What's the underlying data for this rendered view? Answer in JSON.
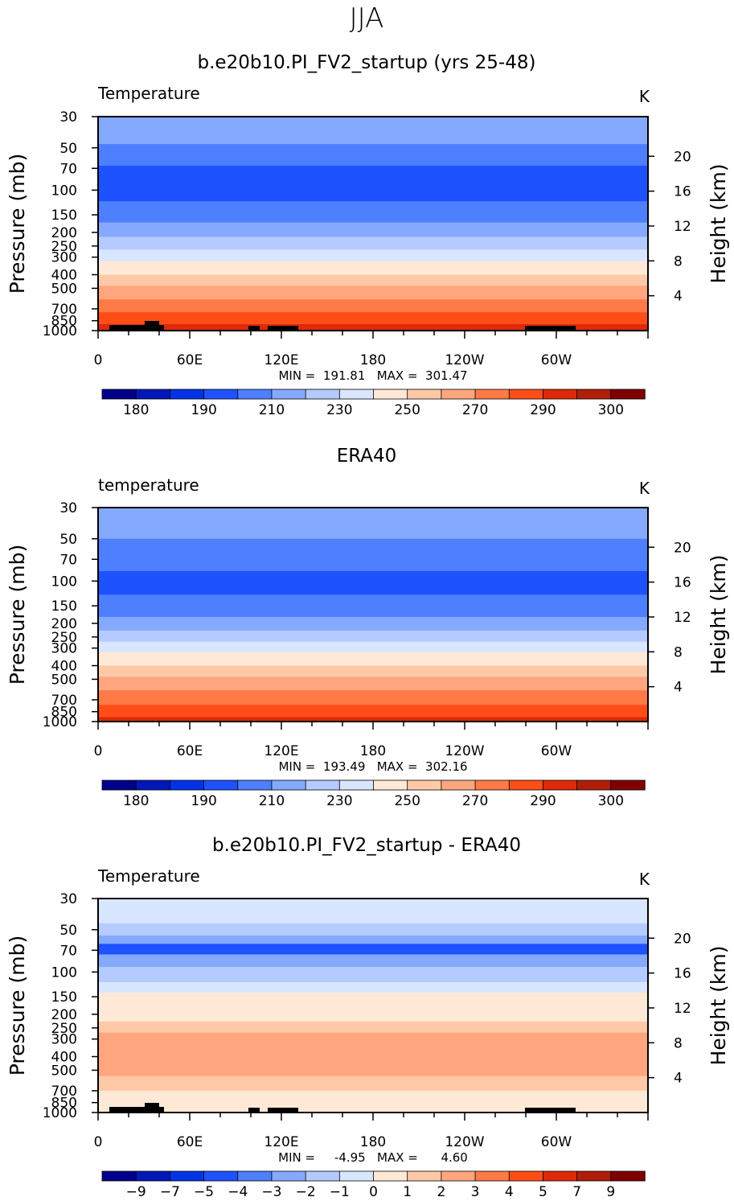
{
  "page_title": "JJA",
  "chart_data": [
    {
      "type": "heatmap",
      "title": "b.e20b10.PI_FV2_startup (yrs 25-48)",
      "left_label": "Temperature",
      "units": "K",
      "ylabel": "Pressure (mb)",
      "y2label": "Height (km)",
      "xticks": [
        "0",
        "60E",
        "120E",
        "180",
        "120W",
        "60W"
      ],
      "yticks": [
        "30",
        "50",
        "70",
        "100",
        "150",
        "200",
        "250",
        "300",
        "400",
        "500",
        "700",
        "850",
        "1000"
      ],
      "y2ticks": [
        "20",
        "16",
        "12",
        "8",
        "4"
      ],
      "min_max_text": "MIN =  191.81   MAX =  301.47",
      "colorbar_labels": [
        "180",
        "190",
        "210",
        "230",
        "250",
        "270",
        "290",
        "300"
      ],
      "bands": [
        {
          "p_top": 30,
          "p_bot": 47,
          "color": "#85a9ff"
        },
        {
          "p_top": 47,
          "p_bot": 67,
          "color": "#4d7fff"
        },
        {
          "p_top": 67,
          "p_bot": 120,
          "color": "#1e52ff"
        },
        {
          "p_top": 120,
          "p_bot": 170,
          "color": "#4d7fff"
        },
        {
          "p_top": 170,
          "p_bot": 215,
          "color": "#85a9ff"
        },
        {
          "p_top": 215,
          "p_bot": 265,
          "color": "#b5cbff"
        },
        {
          "p_top": 265,
          "p_bot": 320,
          "color": "#d9e6ff"
        },
        {
          "p_top": 320,
          "p_bot": 400,
          "color": "#ffe9d6"
        },
        {
          "p_top": 400,
          "p_bot": 480,
          "color": "#ffc9a8"
        },
        {
          "p_top": 480,
          "p_bot": 600,
          "color": "#ffa67e"
        },
        {
          "p_top": 600,
          "p_bot": 740,
          "color": "#ff7a46"
        },
        {
          "p_top": 740,
          "p_bot": 900,
          "color": "#ff4d18"
        },
        {
          "p_top": 900,
          "p_bot": 1000,
          "color": "#dd2a0a"
        }
      ]
    },
    {
      "type": "heatmap",
      "title": "ERA40",
      "left_label": "temperature",
      "units": "K",
      "ylabel": "Pressure (mb)",
      "y2label": "Height (km)",
      "xticks": [
        "0",
        "60E",
        "120E",
        "180",
        "120W",
        "60W"
      ],
      "yticks": [
        "30",
        "50",
        "70",
        "100",
        "150",
        "200",
        "250",
        "300",
        "400",
        "500",
        "700",
        "850",
        "1000"
      ],
      "y2ticks": [
        "20",
        "16",
        "12",
        "8",
        "4"
      ],
      "min_max_text": "MIN =  193.49   MAX =  302.16",
      "colorbar_labels": [
        "180",
        "190",
        "210",
        "230",
        "250",
        "270",
        "290",
        "300"
      ],
      "bands": [
        {
          "p_top": 30,
          "p_bot": 50,
          "color": "#85a9ff"
        },
        {
          "p_top": 50,
          "p_bot": 85,
          "color": "#4d7fff"
        },
        {
          "p_top": 85,
          "p_bot": 125,
          "color": "#1e52ff"
        },
        {
          "p_top": 125,
          "p_bot": 180,
          "color": "#4d7fff"
        },
        {
          "p_top": 180,
          "p_bot": 225,
          "color": "#85a9ff"
        },
        {
          "p_top": 225,
          "p_bot": 270,
          "color": "#b5cbff"
        },
        {
          "p_top": 270,
          "p_bot": 320,
          "color": "#d9e6ff"
        },
        {
          "p_top": 320,
          "p_bot": 400,
          "color": "#ffe9d6"
        },
        {
          "p_top": 400,
          "p_bot": 480,
          "color": "#ffc9a8"
        },
        {
          "p_top": 480,
          "p_bot": 600,
          "color": "#ffa67e"
        },
        {
          "p_top": 600,
          "p_bot": 760,
          "color": "#ff7a46"
        },
        {
          "p_top": 760,
          "p_bot": 930,
          "color": "#ff4d18"
        },
        {
          "p_top": 930,
          "p_bot": 1000,
          "color": "#dd2a0a"
        }
      ]
    },
    {
      "type": "heatmap",
      "title": "b.e20b10.PI_FV2_startup - ERA40",
      "left_label": "Temperature",
      "units": "K",
      "ylabel": "Pressure (mb)",
      "y2label": "Height (km)",
      "xticks": [
        "0",
        "60E",
        "120E",
        "180",
        "120W",
        "60W"
      ],
      "yticks": [
        "30",
        "50",
        "70",
        "100",
        "150",
        "200",
        "250",
        "300",
        "400",
        "500",
        "700",
        "850",
        "1000"
      ],
      "y2ticks": [
        "20",
        "16",
        "12",
        "8",
        "4"
      ],
      "min_max_text": "MIN =     -4.95   MAX =      4.60",
      "colorbar_labels": [
        "-9",
        "-7",
        "-5",
        "-4",
        "-3",
        "-2",
        "-1",
        "0",
        "1",
        "2",
        "3",
        "4",
        "5",
        "7",
        "9"
      ],
      "bands": [
        {
          "p_top": 30,
          "p_bot": 45,
          "color": "#d9e6ff"
        },
        {
          "p_top": 45,
          "p_bot": 55,
          "color": "#b5cbff"
        },
        {
          "p_top": 55,
          "p_bot": 63,
          "color": "#85a9ff"
        },
        {
          "p_top": 63,
          "p_bot": 75,
          "color": "#1e52ff"
        },
        {
          "p_top": 75,
          "p_bot": 92,
          "color": "#85a9ff"
        },
        {
          "p_top": 92,
          "p_bot": 118,
          "color": "#b5cbff"
        },
        {
          "p_top": 118,
          "p_bot": 140,
          "color": "#d9e6ff"
        },
        {
          "p_top": 140,
          "p_bot": 225,
          "color": "#ffe9d6"
        },
        {
          "p_top": 225,
          "p_bot": 270,
          "color": "#ffc9a8"
        },
        {
          "p_top": 270,
          "p_bot": 550,
          "color": "#ffa67e"
        },
        {
          "p_top": 550,
          "p_bot": 700,
          "color": "#ffc9a8"
        },
        {
          "p_top": 700,
          "p_bot": 1000,
          "color": "#ffe9d6"
        }
      ]
    }
  ],
  "colorbar_colors": {
    "temperature": [
      "#00008c",
      "#0018b8",
      "#0033e6",
      "#1e52ff",
      "#4d7fff",
      "#85a9ff",
      "#b5cbff",
      "#d9e6ff",
      "#ffe9d6",
      "#ffc9a8",
      "#ffa67e",
      "#ff7a46",
      "#ff4d18",
      "#dd2a0a",
      "#b01e0a",
      "#800000"
    ],
    "difference": [
      "#00008c",
      "#0018b8",
      "#0033e6",
      "#1e52ff",
      "#4d7fff",
      "#85a9ff",
      "#b5cbff",
      "#d9e6ff",
      "#ffe9d6",
      "#ffc9a8",
      "#ffa67e",
      "#ff7a46",
      "#ff4d18",
      "#dd2a0a",
      "#b01e0a",
      "#800000"
    ]
  }
}
